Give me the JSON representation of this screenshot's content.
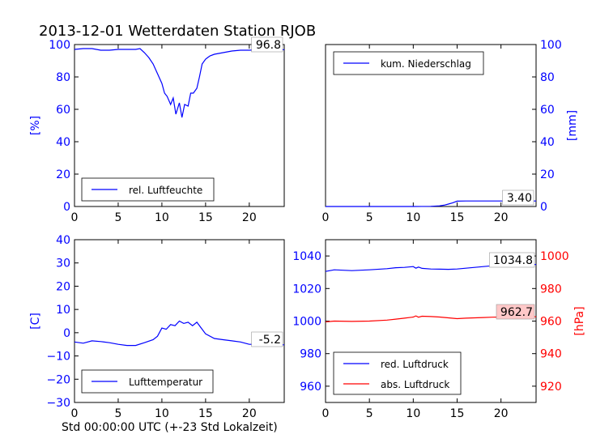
{
  "title": "2013-12-01 Wetterdaten Station RJOB",
  "footer_xlabel": "Std 00:00:00 UTC (+-23 Std Lokalzeit)",
  "colors": {
    "blue": "#0000ff",
    "red": "#ff0000",
    "black": "#000000",
    "red_box": "#ffc8c8"
  },
  "chart_data": [
    {
      "id": "humidity",
      "type": "line",
      "ylabel": "[%]",
      "xlim": [
        0,
        24
      ],
      "ylim": [
        0,
        100
      ],
      "xticks": [
        "0",
        "5",
        "10",
        "15",
        "20"
      ],
      "yticks": [
        "0",
        "20",
        "40",
        "60",
        "80",
        "100"
      ],
      "yaxis_side": "left",
      "legend_position": "lower-left",
      "annotation": "96.8",
      "series": [
        {
          "name": "rel. Luftfeuchte",
          "color": "#0000ff",
          "x": [
            0,
            1,
            2,
            3,
            4,
            5,
            6,
            7,
            7.5,
            8,
            8.5,
            9,
            9.5,
            10,
            10.3,
            10.6,
            11,
            11.3,
            11.6,
            12,
            12.3,
            12.6,
            13,
            13.3,
            13.6,
            14,
            14.3,
            14.6,
            15,
            15.5,
            16,
            17,
            18,
            19,
            20,
            21,
            22,
            24
          ],
          "y": [
            97,
            97.5,
            97.5,
            96.5,
            96.5,
            97,
            97,
            97,
            97.5,
            95,
            92,
            88,
            82,
            76,
            70,
            68,
            63,
            67,
            57,
            64,
            55,
            63,
            62,
            70,
            70,
            73,
            80,
            88,
            91,
            93,
            94,
            95,
            96,
            96.5,
            96.5,
            96.8,
            96.8,
            96.8
          ]
        }
      ]
    },
    {
      "id": "precipitation",
      "type": "line",
      "ylabel": "[mm]",
      "xlim": [
        0,
        24
      ],
      "ylim": [
        0,
        100
      ],
      "xticks": [
        "0",
        "5",
        "10",
        "15",
        "20"
      ],
      "yticks": [
        "0",
        "20",
        "40",
        "60",
        "80",
        "100"
      ],
      "yaxis_side": "right",
      "legend_position": "upper-left",
      "annotation": "3.40",
      "series": [
        {
          "name": "kum. Niederschlag",
          "color": "#0000ff",
          "x": [
            0,
            10,
            12,
            13,
            13.5,
            14,
            14.5,
            15,
            16,
            20,
            24
          ],
          "y": [
            0,
            0,
            0.1,
            0.4,
            0.8,
            1.5,
            2.3,
            3.3,
            3.4,
            3.4,
            3.4
          ]
        }
      ]
    },
    {
      "id": "temperature",
      "type": "line",
      "ylabel": "[C]",
      "xlim": [
        0,
        24
      ],
      "ylim": [
        -30,
        40
      ],
      "xticks": [
        "0",
        "5",
        "10",
        "15",
        "20"
      ],
      "yticks": [
        "−30",
        "−20",
        "−10",
        "0",
        "10",
        "20",
        "30",
        "40"
      ],
      "yaxis_side": "left",
      "legend_position": "lower-left",
      "annotation": "-5.2",
      "series": [
        {
          "name": "Lufttemperatur",
          "color": "#0000ff",
          "x": [
            0,
            1,
            2,
            3,
            4,
            5,
            6,
            7,
            8,
            9,
            9.5,
            10,
            10.5,
            11,
            11.5,
            12,
            12.5,
            13,
            13.5,
            14,
            14.5,
            15,
            16,
            17,
            18,
            19,
            20,
            21,
            22,
            24
          ],
          "y": [
            -4,
            -4.5,
            -3.5,
            -3.8,
            -4.3,
            -5,
            -5.5,
            -5.5,
            -4.3,
            -3,
            -1.5,
            2,
            1.5,
            3.5,
            3,
            5,
            4,
            4.5,
            3,
            4.5,
            2,
            -0.5,
            -2.5,
            -3,
            -3.5,
            -4,
            -5,
            -5,
            -5.2,
            -5.2
          ]
        }
      ]
    },
    {
      "id": "pressure",
      "type": "line",
      "xlim": [
        0,
        24
      ],
      "ylim_left": [
        950,
        1050
      ],
      "ylim_right": [
        910,
        1010
      ],
      "ylabel_right": "[hPa]",
      "xticks": [
        "0",
        "5",
        "10",
        "15",
        "20"
      ],
      "yticks_left": [
        "960",
        "980",
        "1000",
        "1020",
        "1040"
      ],
      "yticks_right": [
        "920",
        "940",
        "960",
        "980",
        "1000"
      ],
      "legend_position": "lower-left",
      "annotations": [
        "1034.8",
        "962.7"
      ],
      "series": [
        {
          "name": "red. Luftdruck",
          "color": "#0000ff",
          "axis": "left",
          "x": [
            0,
            1,
            3,
            5,
            7,
            8,
            9,
            10,
            10.3,
            10.6,
            11,
            12,
            13,
            14,
            15,
            16,
            17,
            18,
            19,
            20,
            21,
            22,
            24
          ],
          "y": [
            1030.5,
            1031.5,
            1031,
            1031.5,
            1032.2,
            1032.8,
            1033,
            1033.5,
            1032.5,
            1033.2,
            1032.4,
            1032,
            1031.9,
            1031.8,
            1032,
            1032.5,
            1033,
            1033.5,
            1034,
            1034.5,
            1034.8,
            1034.8,
            1034.8
          ]
        },
        {
          "name": "abs. Luftdruck",
          "color": "#ff0000",
          "axis": "right",
          "x": [
            0,
            1,
            3,
            5,
            7,
            8,
            9,
            10,
            10.3,
            10.6,
            11,
            12,
            13,
            14,
            15,
            16,
            17,
            18,
            19,
            20,
            21,
            22,
            24
          ],
          "y": [
            959.5,
            960,
            959.8,
            960,
            960.6,
            961.2,
            961.8,
            962.5,
            963.2,
            962.4,
            963,
            962.8,
            962.5,
            962,
            961.5,
            961.8,
            962,
            962.2,
            962.4,
            962.5,
            962.7,
            962.7,
            962.7
          ]
        }
      ]
    }
  ]
}
